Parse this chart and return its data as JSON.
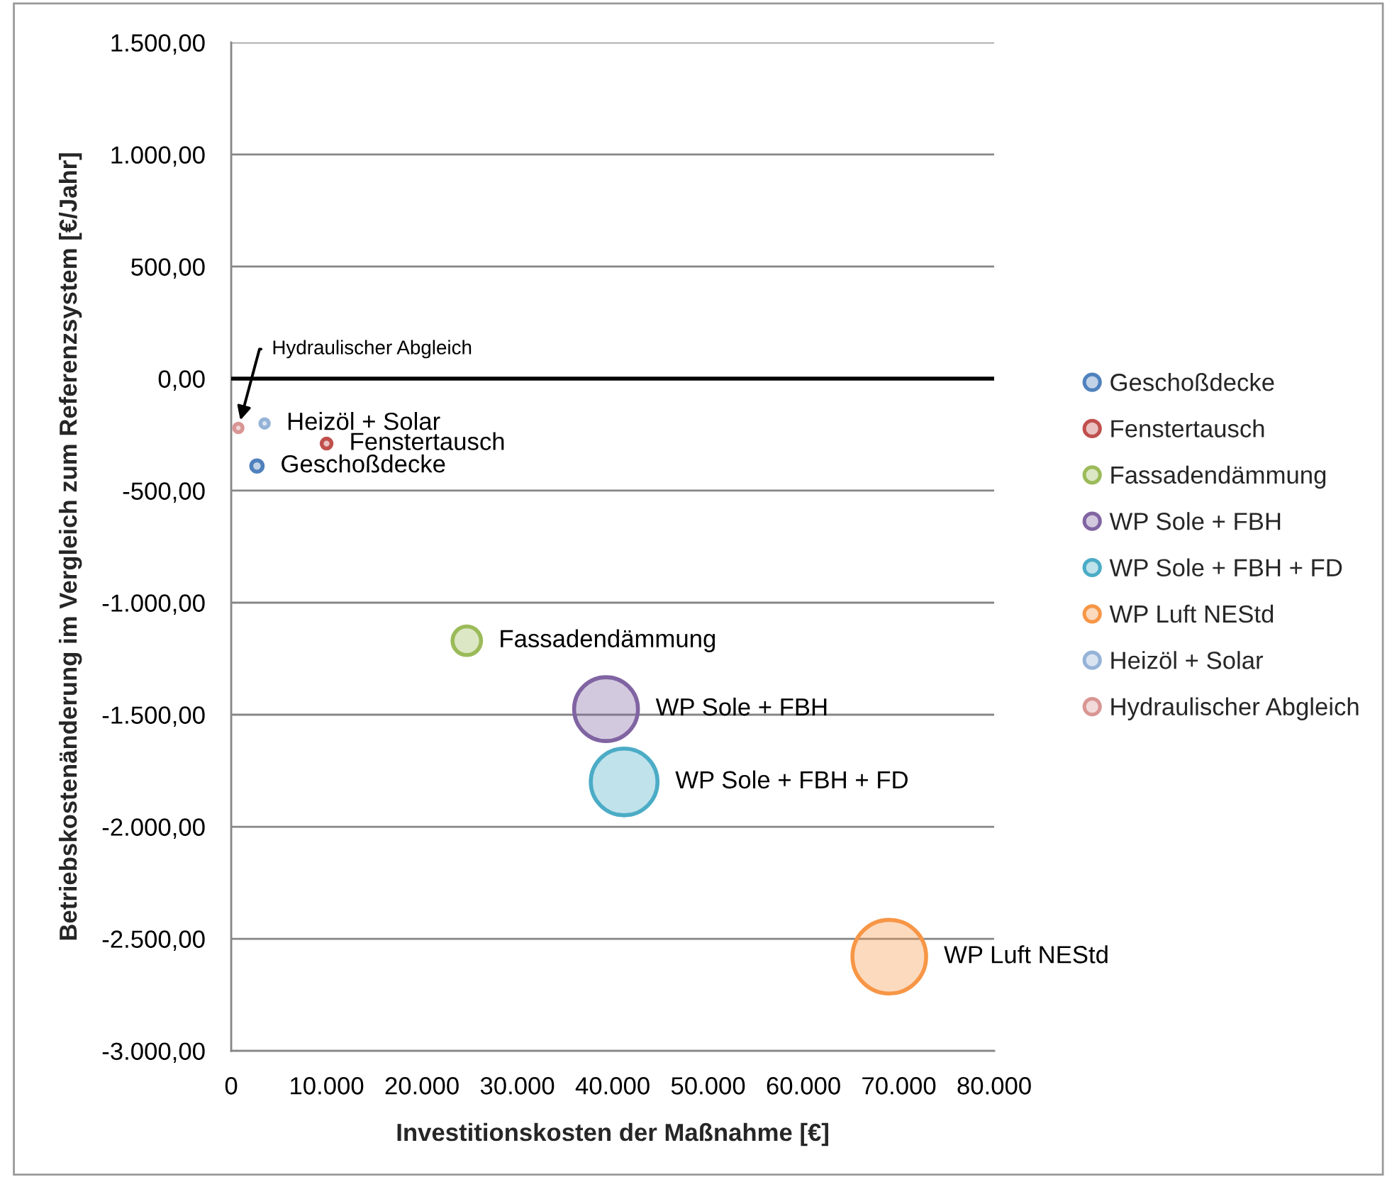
{
  "chart_data": {
    "type": "bubble",
    "xlabel": "Investitionskosten der Maßnahme [€]",
    "ylabel": "Betriebskostenänderung im Vergleich zum Referenzsystem [€/Jahr]",
    "xlim": [
      0,
      80000
    ],
    "ylim": [
      -3000,
      1500
    ],
    "xticks": [
      0,
      {
        "value": 10000,
        "label": "10.000"
      },
      {
        "value": 20000,
        "label": "20.000"
      },
      {
        "value": 30000,
        "label": "30.000"
      },
      {
        "value": 40000,
        "label": "40.000"
      },
      {
        "value": 50000,
        "label": "50.000"
      },
      {
        "value": 60000,
        "label": "60.000"
      },
      {
        "value": 70000,
        "label": "70.000"
      },
      {
        "value": 80000,
        "label": "80.000"
      }
    ],
    "yticks": [
      {
        "value": 1500,
        "label": "1.500,00"
      },
      {
        "value": 1000,
        "label": "1.000,00"
      },
      {
        "value": 500,
        "label": "500,00"
      },
      {
        "value": 0,
        "label": "0,00"
      },
      {
        "value": -500,
        "label": "-500,00"
      },
      {
        "value": -1000,
        "label": "-1.000,00"
      },
      {
        "value": -1500,
        "label": "-1.500,00"
      },
      {
        "value": -2000,
        "label": "-2.000,00"
      },
      {
        "value": -2500,
        "label": "-2.500,00"
      },
      {
        "value": -3000,
        "label": "-3.000,00"
      }
    ],
    "grid": "y",
    "legend": "right",
    "marker": "circle",
    "ref_lines": [
      {
        "axis": "y",
        "value": 0,
        "color": "#000000"
      }
    ],
    "annotations": [
      {
        "text": "Hydraulischer Abgleich",
        "x": 750,
        "y": -220
      }
    ],
    "series": [
      {
        "name": "Geschoßdecke",
        "color": "#4f81bd",
        "x": [
          2700
        ],
        "values": [
          -390
        ],
        "sizes": [
          0.024
        ],
        "value_labels": [
          "Geschoßdecke"
        ]
      },
      {
        "name": "Fenstertausch",
        "color": "#c0504d",
        "x": [
          10000
        ],
        "values": [
          -290
        ],
        "sizes": [
          0.018
        ],
        "value_labels": [
          "Fenstertausch"
        ]
      },
      {
        "name": "Fassadendämmung",
        "color": "#9bbb59",
        "x": [
          24700
        ],
        "values": [
          -1170
        ],
        "sizes": [
          0.15
        ],
        "value_labels": [
          "Fassadendämmung"
        ]
      },
      {
        "name": "WP Sole + FBH",
        "color": "#8064a2",
        "x": [
          39300
        ],
        "values": [
          -1475
        ],
        "sizes": [
          0.75
        ],
        "value_labels": [
          "WP Sole + FBH"
        ]
      },
      {
        "name": "WP Sole + FBH + FD",
        "color": "#4bacc6",
        "x": [
          41200
        ],
        "values": [
          -1800
        ],
        "sizes": [
          0.82
        ],
        "value_labels": [
          "WP Sole + FBH + FD"
        ]
      },
      {
        "name": "WP Luft NEStd",
        "color": "#f79646",
        "x": [
          69000
        ],
        "values": [
          -2580
        ],
        "sizes": [
          1
        ],
        "value_labels": [
          "WP Luft NEStd"
        ]
      },
      {
        "name": "Heizöl + Solar",
        "color": "#95b3d7",
        "x": [
          3500
        ],
        "values": [
          -200
        ],
        "sizes": [
          0.013
        ],
        "value_labels": [
          "Heizöl + Solar"
        ]
      },
      {
        "name": "Hydraulischer Abgleich",
        "color": "#d99694",
        "x": [
          750
        ],
        "values": [
          -220
        ],
        "sizes": [
          0.013
        ]
      }
    ]
  }
}
